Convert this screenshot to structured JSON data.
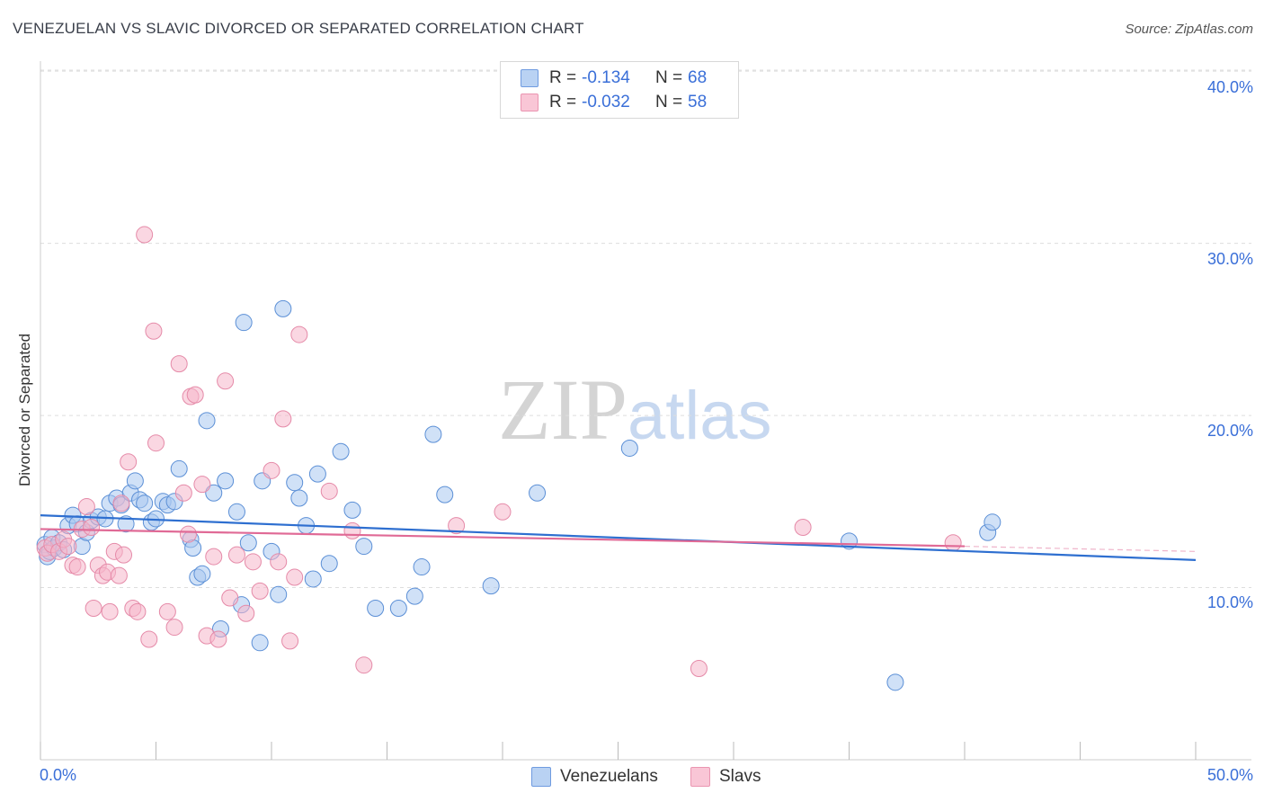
{
  "header": {
    "title": "VENEZUELAN VS SLAVIC DIVORCED OR SEPARATED CORRELATION CHART",
    "source": "Source: ZipAtlas.com"
  },
  "watermark": {
    "zip": "ZIP",
    "atlas": "atlas"
  },
  "legend": {
    "rows": [
      {
        "r_label": "R =",
        "r_value": "-0.134",
        "n_label": "N =",
        "n_value": "68"
      },
      {
        "r_label": "R =",
        "r_value": "-0.032",
        "n_label": "N =",
        "n_value": "58"
      }
    ]
  },
  "bottom_legend": {
    "venezuelans": "Venezuelans",
    "slavs": "Slavs"
  },
  "colors": {
    "venezuelans_fill": "#aac8f0",
    "venezuelans_stroke": "#5b8fd6",
    "venezuelans_line": "#2e6fd0",
    "slavs_fill": "#f6b6ca",
    "slavs_stroke": "#e58aa8",
    "slavs_line": "#e06a96",
    "tick_text": "#3a6fd8",
    "grid": "#dddddd"
  },
  "chart_data": {
    "type": "scatter",
    "title": "VENEZUELAN VS SLAVIC DIVORCED OR SEPARATED CORRELATION CHART",
    "xlabel": "",
    "ylabel": "Divorced or Separated",
    "xlim": [
      0,
      50
    ],
    "ylim": [
      0,
      41
    ],
    "x_tick_labels": [
      "0.0%",
      "50.0%"
    ],
    "y_ticks": [
      10,
      20,
      30,
      40
    ],
    "y_tick_labels": [
      "10.0%",
      "20.0%",
      "30.0%",
      "40.0%"
    ],
    "grid": true,
    "legend_position": "top-center",
    "series": [
      {
        "name": "Venezuelans",
        "r": -0.134,
        "n": 68,
        "trend": [
          [
            0,
            14.2
          ],
          [
            50,
            11.6
          ]
        ],
        "points": [
          [
            0.2,
            12.5
          ],
          [
            0.3,
            11.8
          ],
          [
            0.4,
            12.1
          ],
          [
            0.5,
            12.9
          ],
          [
            0.6,
            12.3
          ],
          [
            0.8,
            12.6
          ],
          [
            1.0,
            12.2
          ],
          [
            1.2,
            13.6
          ],
          [
            1.4,
            14.2
          ],
          [
            1.6,
            13.7
          ],
          [
            1.8,
            12.4
          ],
          [
            2.0,
            13.2
          ],
          [
            2.2,
            13.9
          ],
          [
            2.5,
            14.1
          ],
          [
            2.8,
            14.0
          ],
          [
            3.0,
            14.9
          ],
          [
            3.3,
            15.2
          ],
          [
            3.5,
            14.8
          ],
          [
            3.7,
            13.7
          ],
          [
            3.9,
            15.5
          ],
          [
            4.1,
            16.2
          ],
          [
            4.3,
            15.1
          ],
          [
            4.5,
            14.9
          ],
          [
            4.8,
            13.8
          ],
          [
            5.0,
            14.0
          ],
          [
            5.3,
            15.0
          ],
          [
            5.5,
            14.8
          ],
          [
            5.8,
            15.0
          ],
          [
            6.0,
            16.9
          ],
          [
            6.5,
            12.8
          ],
          [
            6.6,
            12.3
          ],
          [
            6.8,
            10.6
          ],
          [
            7.0,
            10.8
          ],
          [
            7.2,
            19.7
          ],
          [
            7.5,
            15.5
          ],
          [
            7.8,
            7.6
          ],
          [
            8.0,
            16.2
          ],
          [
            8.5,
            14.4
          ],
          [
            8.7,
            9.0
          ],
          [
            8.8,
            25.4
          ],
          [
            9.0,
            12.6
          ],
          [
            9.5,
            6.8
          ],
          [
            9.6,
            16.2
          ],
          [
            10.0,
            12.1
          ],
          [
            10.3,
            9.6
          ],
          [
            10.5,
            26.2
          ],
          [
            11.0,
            16.1
          ],
          [
            11.2,
            15.2
          ],
          [
            11.5,
            13.6
          ],
          [
            11.8,
            10.5
          ],
          [
            12.0,
            16.6
          ],
          [
            12.5,
            11.4
          ],
          [
            13.0,
            17.9
          ],
          [
            13.5,
            14.5
          ],
          [
            14.0,
            12.4
          ],
          [
            14.5,
            8.8
          ],
          [
            15.5,
            8.8
          ],
          [
            16.2,
            9.5
          ],
          [
            16.5,
            11.2
          ],
          [
            17.0,
            18.9
          ],
          [
            17.5,
            15.4
          ],
          [
            19.5,
            10.1
          ],
          [
            21.5,
            15.5
          ],
          [
            25.5,
            18.1
          ],
          [
            35.0,
            12.7
          ],
          [
            37.0,
            4.5
          ],
          [
            41.0,
            13.2
          ],
          [
            41.2,
            13.8
          ]
        ]
      },
      {
        "name": "Slavs",
        "r": -0.032,
        "n": 58,
        "trend": [
          [
            0,
            13.4
          ],
          [
            40,
            12.4
          ]
        ],
        "trend_dashed": [
          [
            40,
            12.4
          ],
          [
            50,
            12.1
          ]
        ],
        "points": [
          [
            0.2,
            12.3
          ],
          [
            0.3,
            12.0
          ],
          [
            0.5,
            12.5
          ],
          [
            0.8,
            12.1
          ],
          [
            1.0,
            12.8
          ],
          [
            1.2,
            12.4
          ],
          [
            1.4,
            11.3
          ],
          [
            1.6,
            11.2
          ],
          [
            1.8,
            13.4
          ],
          [
            2.0,
            14.7
          ],
          [
            2.2,
            13.5
          ],
          [
            2.3,
            8.8
          ],
          [
            2.5,
            11.3
          ],
          [
            2.7,
            10.7
          ],
          [
            2.9,
            10.9
          ],
          [
            3.0,
            8.6
          ],
          [
            3.2,
            12.1
          ],
          [
            3.4,
            10.7
          ],
          [
            3.5,
            14.9
          ],
          [
            3.6,
            11.9
          ],
          [
            3.8,
            17.3
          ],
          [
            4.0,
            8.8
          ],
          [
            4.2,
            8.6
          ],
          [
            4.5,
            30.5
          ],
          [
            4.7,
            7.0
          ],
          [
            4.9,
            24.9
          ],
          [
            5.0,
            18.4
          ],
          [
            5.5,
            8.6
          ],
          [
            5.8,
            7.7
          ],
          [
            6.0,
            23.0
          ],
          [
            6.2,
            15.5
          ],
          [
            6.4,
            13.1
          ],
          [
            6.5,
            21.1
          ],
          [
            6.7,
            21.2
          ],
          [
            7.0,
            16.0
          ],
          [
            7.2,
            7.2
          ],
          [
            7.5,
            11.8
          ],
          [
            7.7,
            7.0
          ],
          [
            8.0,
            22.0
          ],
          [
            8.2,
            9.4
          ],
          [
            8.5,
            11.9
          ],
          [
            8.9,
            8.5
          ],
          [
            9.2,
            11.5
          ],
          [
            9.5,
            9.8
          ],
          [
            10.0,
            16.8
          ],
          [
            10.3,
            11.5
          ],
          [
            10.5,
            19.8
          ],
          [
            10.8,
            6.9
          ],
          [
            11.0,
            10.6
          ],
          [
            11.2,
            24.7
          ],
          [
            12.5,
            15.6
          ],
          [
            13.5,
            13.3
          ],
          [
            14.0,
            5.5
          ],
          [
            18.0,
            13.6
          ],
          [
            20.0,
            14.4
          ],
          [
            28.5,
            5.3
          ],
          [
            33.0,
            13.5
          ],
          [
            39.5,
            12.6
          ]
        ]
      }
    ]
  }
}
